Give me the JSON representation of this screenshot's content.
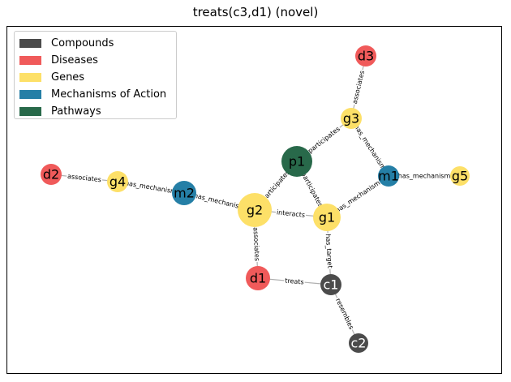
{
  "title": "treats(c3,d1) (novel)",
  "legend": [
    {
      "label": "Compounds",
      "color": "#4b4b4b"
    },
    {
      "label": "Diseases",
      "color": "#f05a5a"
    },
    {
      "label": "Genes",
      "color": "#fde068"
    },
    {
      "label": "Mechanisms of Action",
      "color": "#257fa6"
    },
    {
      "label": "Pathways",
      "color": "#28694a"
    }
  ],
  "nodes": [
    {
      "id": "d3",
      "label": "d3",
      "type": "disease"
    },
    {
      "id": "g3",
      "label": "g3",
      "type": "gene"
    },
    {
      "id": "p1",
      "label": "p1",
      "type": "pathway"
    },
    {
      "id": "m1",
      "label": "m1",
      "type": "mechanism"
    },
    {
      "id": "g5",
      "label": "g5",
      "type": "gene"
    },
    {
      "id": "d2",
      "label": "d2",
      "type": "disease"
    },
    {
      "id": "g4",
      "label": "g4",
      "type": "gene"
    },
    {
      "id": "m2",
      "label": "m2",
      "type": "mechanism"
    },
    {
      "id": "g2",
      "label": "g2",
      "type": "gene"
    },
    {
      "id": "g1",
      "label": "g1",
      "type": "gene"
    },
    {
      "id": "d1",
      "label": "d1",
      "type": "disease"
    },
    {
      "id": "c1",
      "label": "c1",
      "type": "compound"
    },
    {
      "id": "c2",
      "label": "c2",
      "type": "compound"
    }
  ],
  "edges": [
    {
      "source": "g3",
      "target": "d3",
      "label": "associates"
    },
    {
      "source": "g3",
      "target": "p1",
      "label": "participates"
    },
    {
      "source": "g3",
      "target": "m1",
      "label": "has_mechanism"
    },
    {
      "source": "g5",
      "target": "m1",
      "label": "has_mechanism"
    },
    {
      "source": "g1",
      "target": "m1",
      "label": "has_mechanism"
    },
    {
      "source": "g4",
      "target": "d2",
      "label": "associates"
    },
    {
      "source": "g4",
      "target": "m2",
      "label": "has_mechanism"
    },
    {
      "source": "g2",
      "target": "m2",
      "label": "has_mechanism"
    },
    {
      "source": "g2",
      "target": "p1",
      "label": "participates"
    },
    {
      "source": "g1",
      "target": "p1",
      "label": "participates"
    },
    {
      "source": "g2",
      "target": "g1",
      "label": "interacts"
    },
    {
      "source": "g2",
      "target": "d1",
      "label": "associates"
    },
    {
      "source": "c1",
      "target": "g1",
      "label": "has_target"
    },
    {
      "source": "c1",
      "target": "d1",
      "label": "treats"
    },
    {
      "source": "c1",
      "target": "c2",
      "label": "resembles"
    }
  ],
  "colors": {
    "compound": "#4b4b4b",
    "disease": "#f05a5a",
    "gene": "#fde068",
    "mechanism": "#257fa6",
    "pathway": "#28694a",
    "edge": "#b0b0b0"
  }
}
